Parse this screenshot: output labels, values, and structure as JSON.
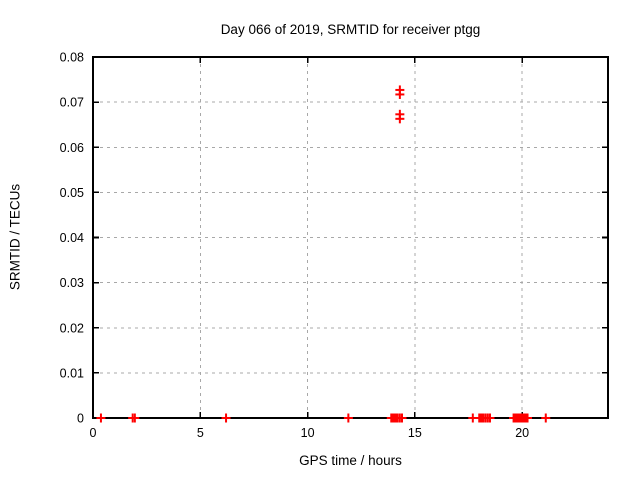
{
  "window": {
    "background": "#ffffff",
    "foreground": "#000000"
  },
  "chart_data": {
    "type": "scatter",
    "title": "Day 066 of 2019, SRMTID for receiver ptgg",
    "xlabel": "GPS time / hours",
    "ylabel": "SRMTID / TECUs",
    "xlim": [
      0,
      24
    ],
    "ylim": [
      0,
      0.08
    ],
    "x_ticks": [
      {
        "value": 0,
        "label": "0"
      },
      {
        "value": 5,
        "label": "5"
      },
      {
        "value": 10,
        "label": "10"
      },
      {
        "value": 15,
        "label": "15"
      },
      {
        "value": 20,
        "label": "20"
      }
    ],
    "y_ticks": [
      {
        "value": 0,
        "label": "0"
      },
      {
        "value": 0.01,
        "label": "0.01"
      },
      {
        "value": 0.02,
        "label": "0.02"
      },
      {
        "value": 0.03,
        "label": "0.03"
      },
      {
        "value": 0.04,
        "label": "0.04"
      },
      {
        "value": 0.05,
        "label": "0.05"
      },
      {
        "value": 0.06,
        "label": "0.06"
      },
      {
        "value": 0.07,
        "label": "0.07"
      },
      {
        "value": 0.08,
        "label": "0.08"
      }
    ],
    "grid": {
      "on": true,
      "style": "dashed",
      "color": "#a8a8a8",
      "x_values": [
        5,
        10,
        15,
        20
      ],
      "y_values": [
        0.01,
        0.02,
        0.03,
        0.04,
        0.05,
        0.06,
        0.07
      ]
    },
    "legend": {
      "visible": false
    },
    "series": [
      {
        "name": "SRMTID",
        "marker": "plus",
        "color": "#ff0000",
        "points": [
          [
            14.3,
            0.0727
          ],
          [
            14.3,
            0.0717
          ],
          [
            14.3,
            0.0673
          ],
          [
            14.3,
            0.0663
          ],
          [
            0.37,
            0
          ],
          [
            1.85,
            0
          ],
          [
            1.95,
            0
          ],
          [
            6.2,
            0
          ],
          [
            11.9,
            0
          ],
          [
            13.9,
            0
          ],
          [
            13.95,
            0
          ],
          [
            14.0,
            0
          ],
          [
            14.05,
            0
          ],
          [
            14.1,
            0
          ],
          [
            14.15,
            0
          ],
          [
            14.2,
            0
          ],
          [
            14.3,
            0
          ],
          [
            14.4,
            0
          ],
          [
            17.7,
            0
          ],
          [
            18.0,
            0
          ],
          [
            18.05,
            0
          ],
          [
            18.1,
            0
          ],
          [
            18.15,
            0
          ],
          [
            18.2,
            0
          ],
          [
            18.3,
            0
          ],
          [
            18.4,
            0
          ],
          [
            18.5,
            0
          ],
          [
            19.6,
            0
          ],
          [
            19.65,
            0
          ],
          [
            19.7,
            0
          ],
          [
            19.75,
            0
          ],
          [
            19.8,
            0
          ],
          [
            19.85,
            0
          ],
          [
            19.9,
            0
          ],
          [
            19.95,
            0
          ],
          [
            20.0,
            0
          ],
          [
            20.05,
            0
          ],
          [
            20.1,
            0
          ],
          [
            20.15,
            0
          ],
          [
            20.2,
            0
          ],
          [
            20.25,
            0
          ],
          [
            21.1,
            0
          ]
        ]
      }
    ]
  }
}
